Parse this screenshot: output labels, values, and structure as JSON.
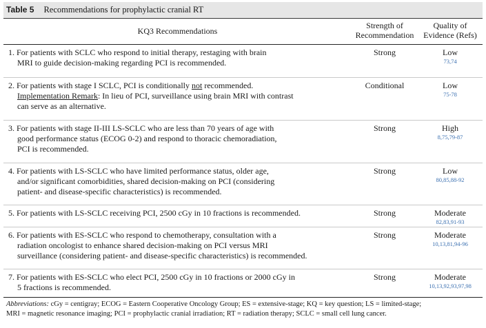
{
  "table": {
    "label": "Table 5",
    "caption": "Recommendations for prophylactic cranial RT",
    "headers": {
      "recommendations": "KQ3 Recommendations",
      "strength_line1": "Strength of",
      "strength_line2": "Recommendation",
      "quality_line1": "Quality of",
      "quality_line2": "Evidence (Refs)"
    },
    "rows": [
      {
        "lines": [
          "1. For patients with SCLC who respond to initial therapy, restaging with brain",
          "MRI to guide decision-making regarding PCI is recommended."
        ],
        "strength": "Strong",
        "quality": "Low",
        "refs": "73,74"
      },
      {
        "line1": "2. For patients with stage I SCLC, PCI is conditionally ",
        "line1_underlined": "not",
        "line1_end": " recommended.",
        "remark_label": "Implementation Remark",
        "remark_text": ": In lieu of PCI, surveillance using brain MRI with contrast",
        "line3": "can serve as an alternative.",
        "strength": "Conditional",
        "quality": "Low",
        "refs": "75-78"
      },
      {
        "lines": [
          "3. For patients with stage II-III LS-SCLC who are less than 70 years of age with",
          "good performance status (ECOG 0-2) and respond to thoracic chemoradiation,",
          "PCI is recommended."
        ],
        "strength": "Strong",
        "quality": "High",
        "refs": "8,75,79-87"
      },
      {
        "lines": [
          "4. For patients with LS-SCLC who have limited performance status, older age,",
          "and/or significant comorbidities, shared decision-making on PCI (considering",
          "patient- and disease-specific characteristics) is recommended."
        ],
        "strength": "Strong",
        "quality": "Low",
        "refs": "80,85,88-92"
      },
      {
        "lines": [
          "5. For patients with LS-SCLC receiving PCI, 2500 cGy in 10 fractions is recommended."
        ],
        "strength": "Strong",
        "quality": "Moderate",
        "refs": "82,83,91-93"
      },
      {
        "lines": [
          "6. For patients with ES-SCLC who respond to chemotherapy, consultation with a",
          "radiation oncologist to enhance shared decision-making on PCI versus MRI",
          "surveillance (considering patient- and disease-specific characteristics) is recommended."
        ],
        "strength": "Strong",
        "quality": "Moderate",
        "refs": "10,13,81,94-96"
      },
      {
        "lines": [
          "7. For patients with ES-SCLC who elect PCI, 2500 cGy in 10 fractions or 2000 cGy in",
          "5 fractions is recommended."
        ],
        "strength": "Strong",
        "quality": "Moderate",
        "refs": "10,13,92,93,97,98"
      }
    ],
    "footnote": {
      "label": "Abbreviations:",
      "line1": " cGy = centigray; ECOG = Eastern Cooperative Oncology Group; ES = extensive-stage; KQ = key question; LS = limited-stage;",
      "line2": "MRI = magnetic resonance imaging; PCI = prophylactic cranial irradiation; RT = radiation therapy; SCLC = small cell lung cancer."
    }
  }
}
